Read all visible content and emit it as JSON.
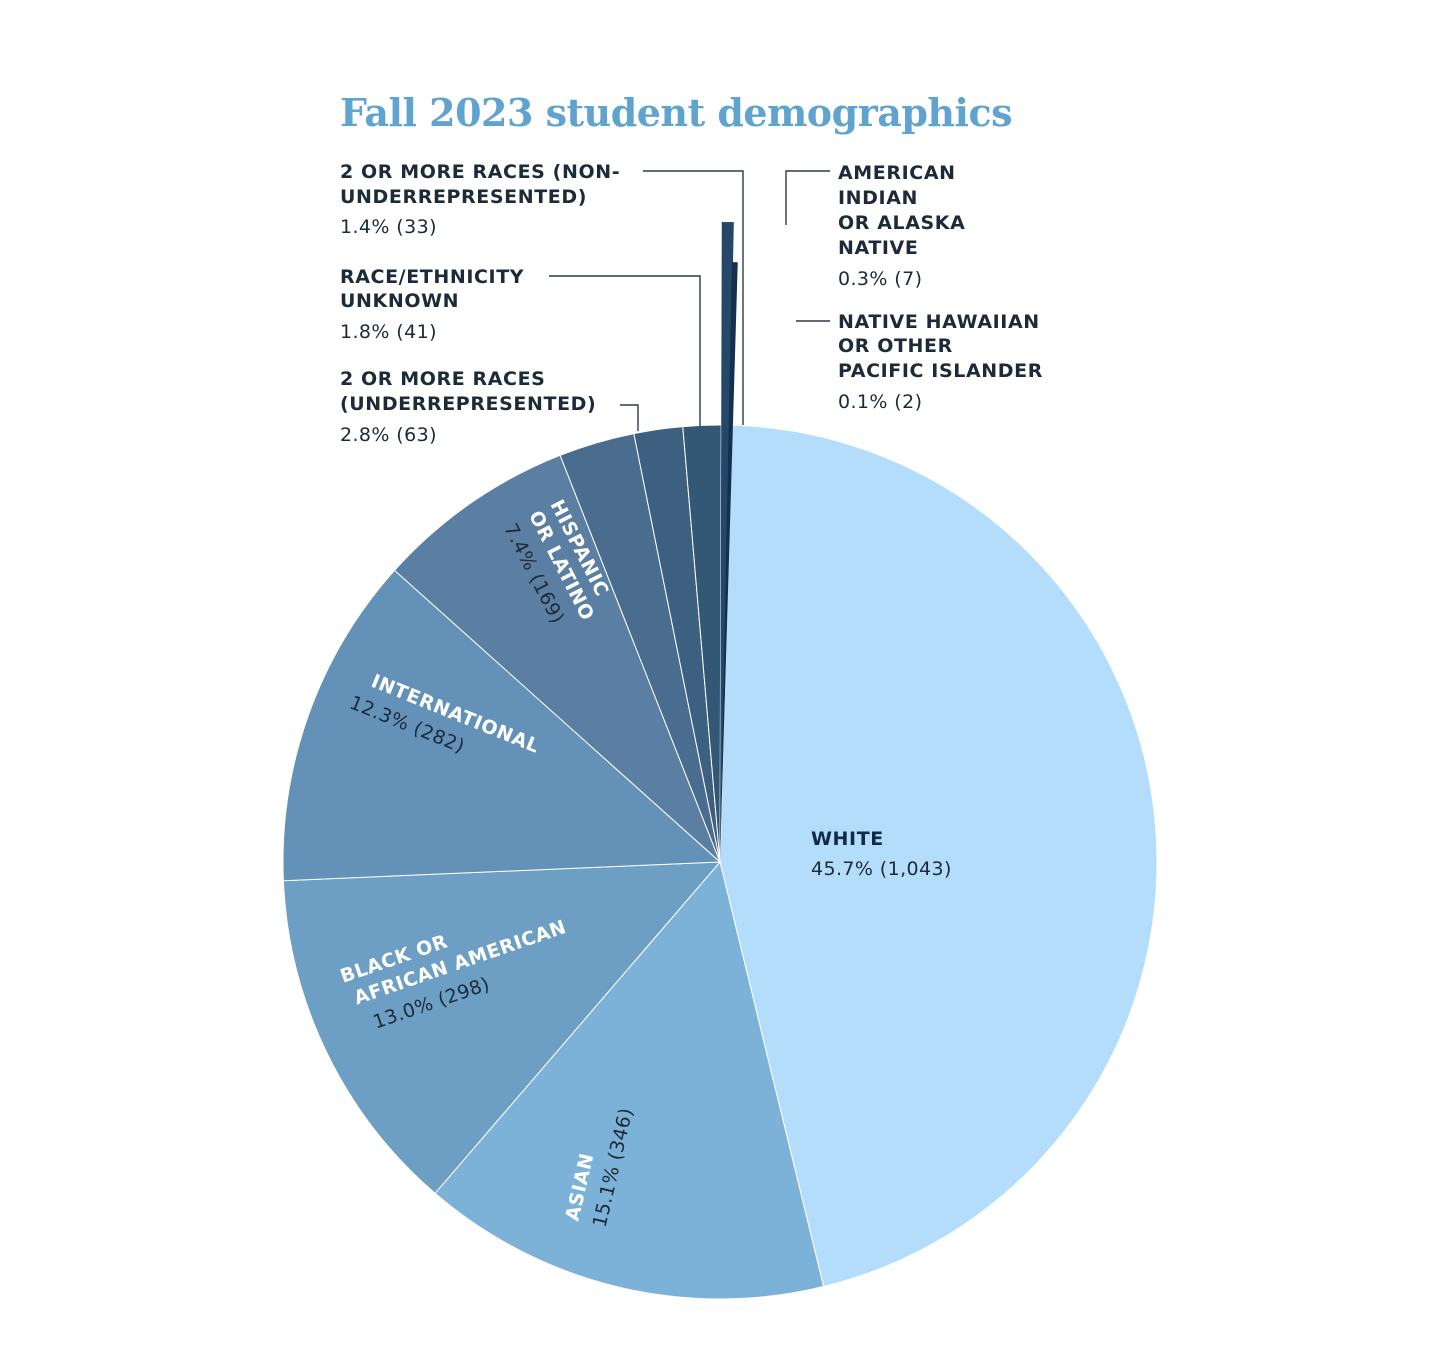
{
  "chart_data": {
    "type": "pie",
    "title": "Fall 2023 student demographics",
    "start_angle_deg": 88.4,
    "direction": "clockwise",
    "slices": [
      {
        "label": "WHITE",
        "value_text": "45.7% (1,043)",
        "percent": 45.7,
        "count": 1043,
        "color": "#b4ddfb"
      },
      {
        "label": "ASIAN",
        "value_text": "15.1% (346)",
        "percent": 15.1,
        "count": 346,
        "color": "#7db2d8"
      },
      {
        "label": "BLACK OR AFRICAN AMERICAN",
        "value_text": "13.0% (298)",
        "percent": 13.0,
        "count": 298,
        "color": "#6d9fc4"
      },
      {
        "label": "INTERNATIONAL",
        "value_text": "12.3% (282)",
        "percent": 12.3,
        "count": 282,
        "color": "#6391b7"
      },
      {
        "label": "HISPANIC OR LATINO",
        "value_text": "7.4% (169)",
        "percent": 7.4,
        "count": 169,
        "color": "#5b7fa3"
      },
      {
        "label": "2 OR MORE RACES (UNDERREPRESENTED)",
        "value_text": "2.8% (63)",
        "percent": 2.8,
        "count": 63,
        "color": "#4a6c8e"
      },
      {
        "label": "RACE/ETHNICITY UNKNOWN",
        "value_text": "1.8% (41)",
        "percent": 1.8,
        "count": 41,
        "color": "#3d6080"
      },
      {
        "label": "2 OR MORE RACES (NON-UNDERREPRESENTED)",
        "value_text": "1.4% (33)",
        "percent": 1.4,
        "count": 33,
        "color": "#335876"
      },
      {
        "label": "AMERICAN INDIAN OR ALASKA NATIVE",
        "value_text": "0.3% (7)",
        "percent": 0.3,
        "count": 7,
        "color": "#25476a"
      },
      {
        "label": "NATIVE HAWAIIAN OR OTHER PACIFIC ISLANDER",
        "value_text": "0.1% (2)",
        "percent": 0.1,
        "count": 2,
        "color": "#12304f"
      }
    ],
    "labels": {
      "white": {
        "lines": [
          "WHITE"
        ],
        "value": "45.7% (1,043)"
      },
      "asian": {
        "lines": [
          "ASIAN"
        ],
        "value": "15.1% (346)"
      },
      "black": {
        "lines": [
          "BLACK OR",
          "AFRICAN AMERICAN"
        ],
        "value": "13.0% (298)"
      },
      "international": {
        "lines": [
          "INTERNATIONAL"
        ],
        "value": "12.3% (282)"
      },
      "hispanic": {
        "lines": [
          "HISPANIC",
          "OR LATINO"
        ],
        "value": "7.4% (169)"
      },
      "two_under": {
        "lines": [
          "2 OR MORE RACES",
          "(UNDERREPRESENTED)"
        ],
        "value": "2.8% (63)"
      },
      "unknown": {
        "lines": [
          "RACE/ETHNICITY",
          "UNKNOWN"
        ],
        "value": "1.8% (41)"
      },
      "two_non": {
        "lines": [
          "2 OR MORE RACES (NON-",
          "UNDERREPRESENTED)"
        ],
        "value": "1.4% (33)"
      },
      "amind": {
        "lines": [
          "AMERICAN",
          "INDIAN",
          "OR ALASKA",
          "NATIVE"
        ],
        "value": "0.3% (7)"
      },
      "nhpi": {
        "lines": [
          "NATIVE HAWAIIAN",
          "OR OTHER",
          "PACIFIC ISLANDER"
        ],
        "value": "0.1% (2)"
      }
    }
  }
}
